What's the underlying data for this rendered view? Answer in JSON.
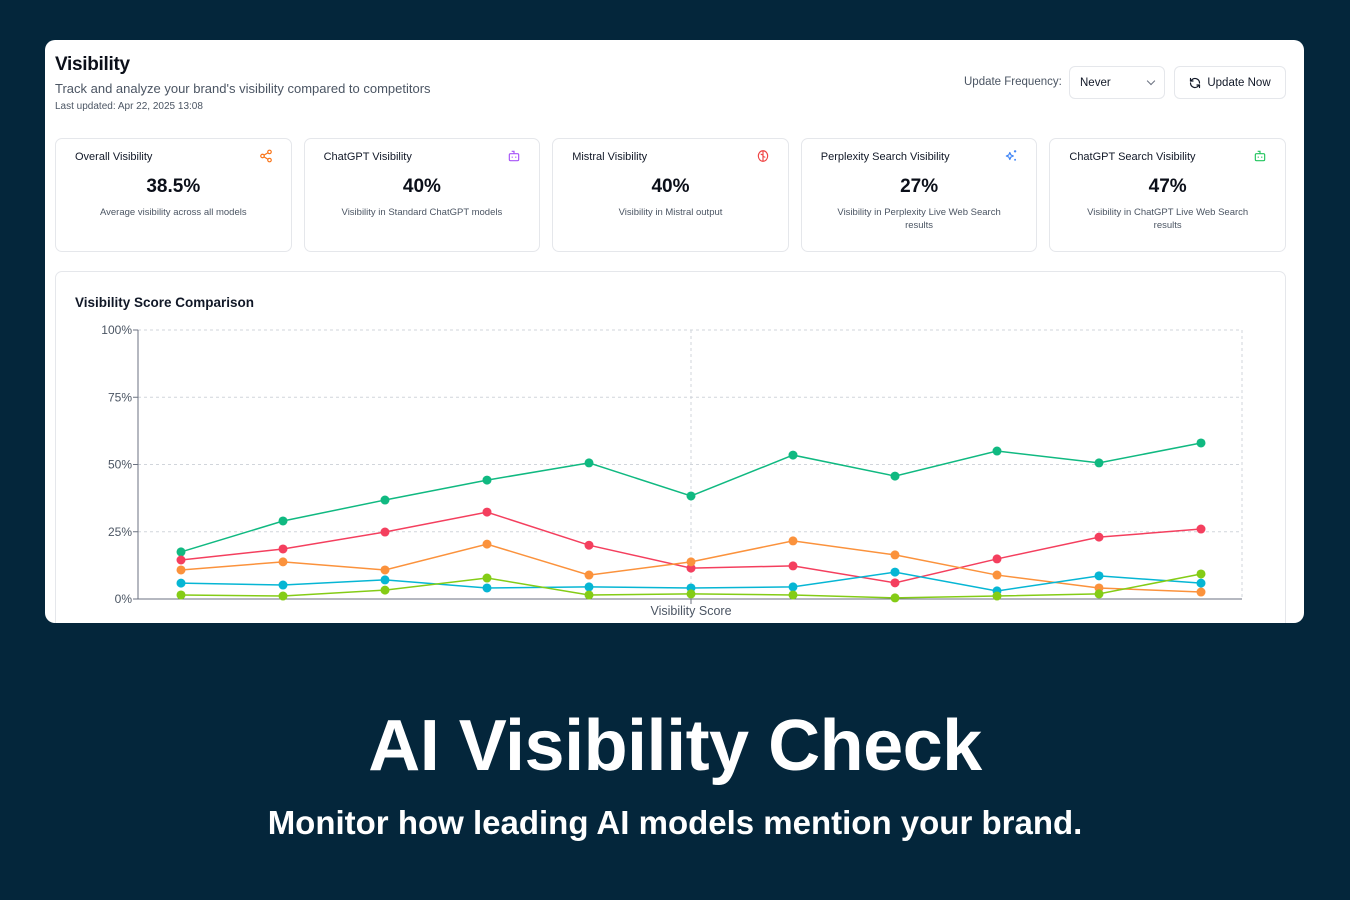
{
  "header": {
    "title": "Visibility",
    "subtitle": "Track and analyze your brand's visibility compared to competitors",
    "last_updated": "Last updated: Apr 22, 2025 13:08",
    "frequency_label": "Update Frequency:",
    "frequency_value": "Never",
    "update_button": "Update Now",
    "update_icon": "refresh-icon"
  },
  "cards": [
    {
      "title": "Overall Visibility",
      "value": "38.5%",
      "desc": "Average visibility across all models",
      "icon": "share-icon",
      "icon_color": "#f97316"
    },
    {
      "title": "ChatGPT Visibility",
      "value": "40%",
      "desc": "Visibility in Standard ChatGPT models",
      "icon": "bot-icon",
      "icon_color": "#a855f7"
    },
    {
      "title": "Mistral Visibility",
      "value": "40%",
      "desc": "Visibility in Mistral output",
      "icon": "brain-icon",
      "icon_color": "#ef4444"
    },
    {
      "title": "Perplexity Search Visibility",
      "value": "27%",
      "desc": "Visibility in Perplexity Live Web Search results",
      "icon": "sparkles-icon",
      "icon_color": "#3b82f6"
    },
    {
      "title": "ChatGPT Search Visibility",
      "value": "47%",
      "desc": "Visibility in ChatGPT Live Web Search results",
      "icon": "bot-icon",
      "icon_color": "#22c55e"
    }
  ],
  "chart": {
    "title": "Visibility Score Comparison"
  },
  "chart_data": {
    "type": "line",
    "title": "Visibility Score Comparison",
    "xlabel": "Visibility Score",
    "ylabel": "",
    "ylim": [
      0,
      100
    ],
    "yticks": [
      "0%",
      "25%",
      "50%",
      "75%",
      "100%"
    ],
    "grid": true,
    "legend": "none",
    "x": [
      1,
      2,
      3,
      4,
      5,
      6,
      7,
      8,
      9,
      10,
      11
    ],
    "series": [
      {
        "name": "green",
        "color": "#10b981",
        "values": [
          17.5,
          29,
          36.8,
          44.2,
          50.6,
          38.3,
          53.5,
          45.7,
          55,
          50.6,
          58
        ]
      },
      {
        "name": "red",
        "color": "#f43f5e",
        "values": [
          14.5,
          18.6,
          24.9,
          32.3,
          20,
          11.5,
          12.3,
          6,
          14.9,
          23,
          26
        ]
      },
      {
        "name": "orange",
        "color": "#fb923c",
        "values": [
          10.8,
          13.8,
          10.8,
          20.4,
          8.9,
          13.8,
          21.6,
          16.4,
          8.9,
          4.1,
          2.6
        ]
      },
      {
        "name": "blue",
        "color": "#06b6d4",
        "values": [
          5.9,
          5.2,
          7.1,
          4.1,
          4.5,
          4.1,
          4.5,
          10,
          3,
          8.6,
          5.9
        ]
      },
      {
        "name": "lime",
        "color": "#84cc16",
        "values": [
          1.5,
          1.1,
          3.3,
          7.8,
          1.5,
          1.9,
          1.5,
          0.4,
          1.1,
          1.9,
          9.3
        ]
      }
    ]
  },
  "hero": {
    "title": "AI Visibility Check",
    "subtitle": "Monitor how leading AI models mention your brand."
  }
}
